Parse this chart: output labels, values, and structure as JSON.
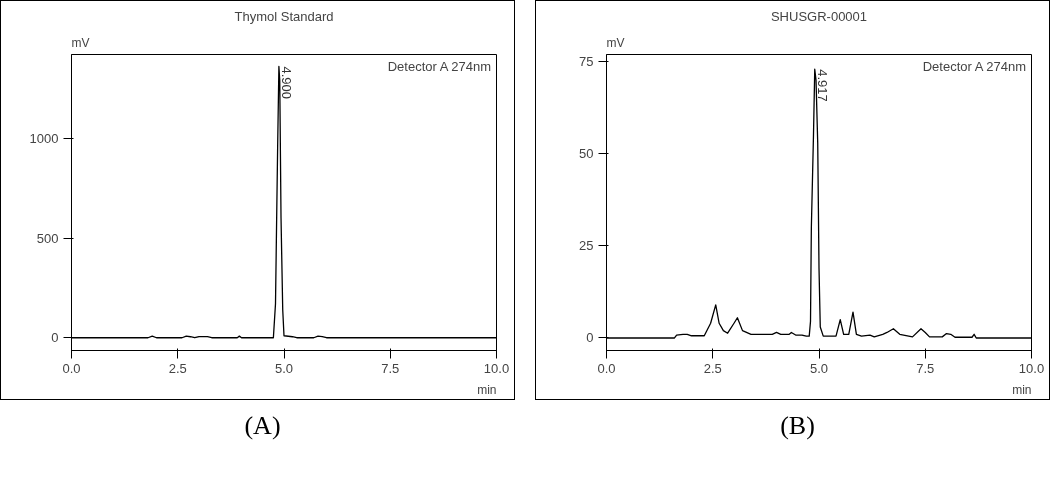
{
  "chart_data": [
    {
      "type": "line",
      "title": "Thymol Standard",
      "ylabel": "mV",
      "xlabel": "min",
      "xlim": [
        0,
        10
      ],
      "ylim": [
        -64,
        1420
      ],
      "xticks": [
        {
          "value": 0,
          "label": "0.0"
        },
        {
          "value": 2.5,
          "label": "2.5"
        },
        {
          "value": 5,
          "label": "5.0"
        },
        {
          "value": 7.5,
          "label": "7.5"
        },
        {
          "value": 10,
          "label": "10.0"
        }
      ],
      "yticks": [
        0,
        500,
        1000
      ],
      "grid": false,
      "series": [
        {
          "color": "#000000",
          "x": [
            0,
            1.8,
            1.9,
            2.0,
            2.6,
            2.7,
            2.8,
            2.9,
            3.0,
            3.2,
            3.3,
            3.9,
            3.95,
            4.0,
            4.75,
            4.8,
            4.85,
            4.88,
            4.9,
            4.93,
            4.97,
            5.0,
            5.2,
            5.3,
            5.7,
            5.8,
            5.9,
            6.0,
            10
          ],
          "values": [
            0,
            0,
            8,
            0,
            0,
            8,
            5,
            0,
            6,
            6,
            0,
            0,
            8,
            0,
            0,
            170,
            950,
            1360,
            1290,
            600,
            140,
            10,
            5,
            0,
            0,
            8,
            6,
            0,
            0
          ]
        }
      ],
      "annotations": [
        "4.900",
        "Detector A 274nm",
        "(A)"
      ]
    },
    {
      "type": "line",
      "title": "SHUSGR-00001",
      "ylabel": "mV",
      "xlabel": "min",
      "xlim": [
        0,
        10
      ],
      "ylim": [
        -3.4,
        77
      ],
      "xticks": [
        {
          "value": 0,
          "label": "0.0"
        },
        {
          "value": 2.5,
          "label": "2.5"
        },
        {
          "value": 5,
          "label": "5.0"
        },
        {
          "value": 7.5,
          "label": "7.5"
        },
        {
          "value": 10,
          "label": "10.0"
        }
      ],
      "yticks": [
        0,
        25,
        50,
        75
      ],
      "grid": false,
      "series": [
        {
          "color": "#000000",
          "x": [
            0,
            1.6,
            1.65,
            1.8,
            1.9,
            2.0,
            2.3,
            2.45,
            2.57,
            2.65,
            2.75,
            2.85,
            3.0,
            3.08,
            3.2,
            3.4,
            3.9,
            4.0,
            4.1,
            4.3,
            4.35,
            4.45,
            4.6,
            4.7,
            4.77,
            4.8,
            4.82,
            4.87,
            4.9,
            4.93,
            4.97,
            5.0,
            5.03,
            5.1,
            5.4,
            5.5,
            5.58,
            5.7,
            5.8,
            5.88,
            6.0,
            6.2,
            6.3,
            6.5,
            6.6,
            6.75,
            6.9,
            7.2,
            7.4,
            7.5,
            7.6,
            7.9,
            8.0,
            8.1,
            8.2,
            8.6,
            8.65,
            8.7,
            10
          ],
          "values": [
            0,
            0,
            0.8,
            1,
            1,
            0.6,
            0.6,
            4,
            9,
            4,
            2,
            1.3,
            4,
            5.5,
            2,
            1,
            1,
            1.5,
            1,
            1,
            1.5,
            0.8,
            0.8,
            0.5,
            0.5,
            4.5,
            30,
            55,
            73,
            70,
            53,
            19,
            3,
            0.5,
            0.5,
            5,
            1,
            1,
            7,
            1,
            0.5,
            0.8,
            0.3,
            1,
            1.5,
            2.5,
            1,
            0.3,
            2.5,
            1.5,
            0.3,
            0.3,
            1.2,
            1,
            0.2,
            0.2,
            1,
            0,
            0
          ]
        }
      ],
      "annotations": [
        "4.917",
        "Detector A 274nm",
        "(B)"
      ]
    }
  ]
}
